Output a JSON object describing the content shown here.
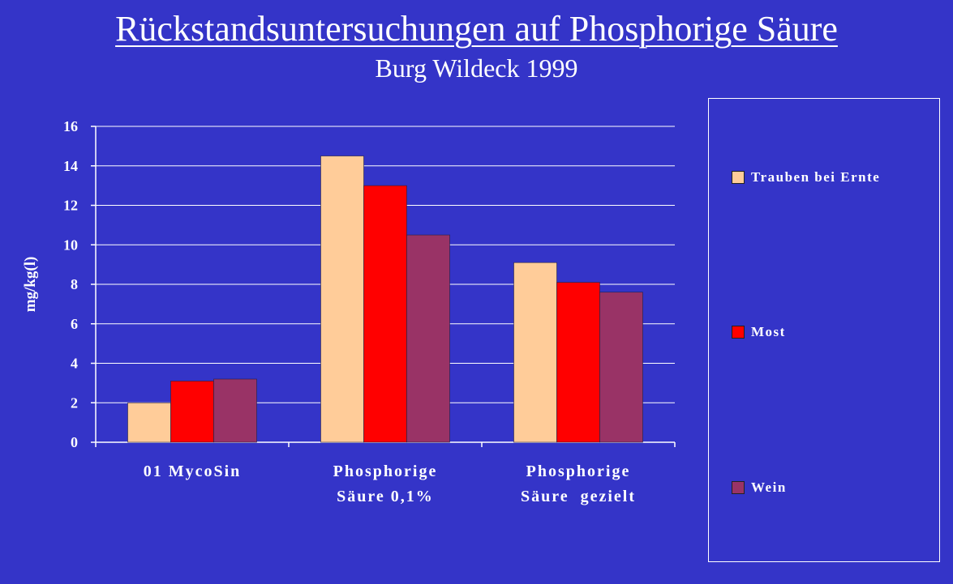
{
  "chart_data": {
    "type": "bar",
    "title": "Rückstandsuntersuchungen auf Phosphorige Säure",
    "subtitle": "Burg Wildeck 1999",
    "ylabel": "mg/kg(l)",
    "ylim": [
      0,
      16
    ],
    "yticks": [
      "0",
      "2",
      "4",
      "6",
      "8",
      "10",
      "12",
      "14",
      "16"
    ],
    "grid": true,
    "legend_position": "right",
    "categories": [
      [
        "01 MycoSin"
      ],
      [
        "Phosphorige",
        "Säure 0,1%"
      ],
      [
        "Phosphorige",
        "Säure  gezielt"
      ]
    ],
    "series": [
      {
        "name": "Trauben bei Ernte",
        "color": "#ffcc99",
        "values": [
          2.0,
          14.5,
          9.1
        ]
      },
      {
        "name": "Most",
        "color": "#ff0000",
        "values": [
          3.1,
          13.0,
          8.1
        ]
      },
      {
        "name": "Wein",
        "color": "#993366",
        "values": [
          3.2,
          10.5,
          7.6
        ]
      }
    ]
  }
}
